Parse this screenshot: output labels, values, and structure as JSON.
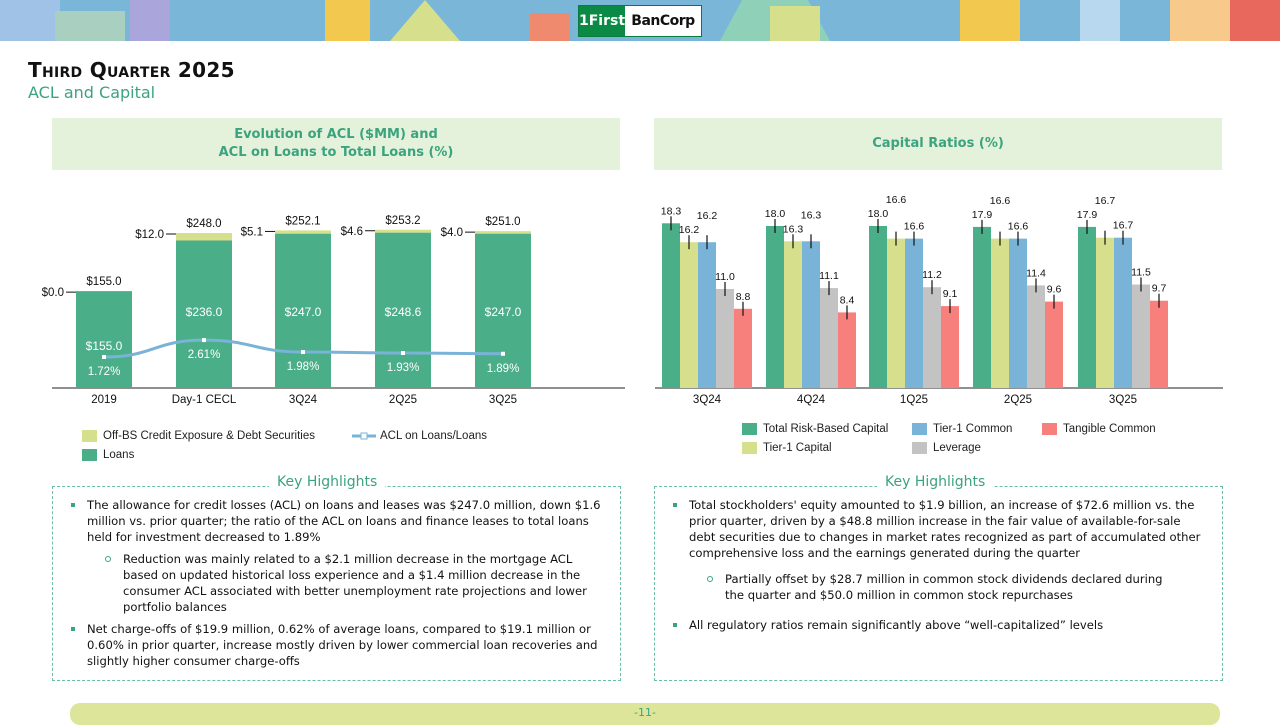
{
  "header": {
    "logo_text": "1First BanCorp",
    "title": "Third Quarter 2025",
    "subtitle": "ACL and Capital"
  },
  "left_panel": {
    "title_line1": "Evolution of ACL ($MM) and",
    "title_line2": "ACL on Loans to Total Loans (%)"
  },
  "right_panel": {
    "title": "Capital Ratios (%)"
  },
  "colors": {
    "green": "#4aae89",
    "lightgreen": "#d5df8c",
    "blue": "#79b4d8",
    "grey": "#c3c3c3",
    "red": "#f7807d",
    "line": "#79b4d8",
    "accent": "#3ba37e"
  },
  "chart_data": [
    {
      "type": "bar",
      "stacked": true,
      "title": "Evolution of ACL ($MM) and ACL on Loans to Total Loans (%)",
      "categories": [
        "2019",
        "Day-1 CECL",
        "3Q24",
        "2Q25",
        "3Q25"
      ],
      "series": [
        {
          "name": "Loans",
          "values": [
            155.0,
            236.0,
            247.0,
            248.6,
            247.0
          ],
          "labels": [
            "$155.0",
            "$236.0",
            "$247.0",
            "$248.6",
            "$247.0"
          ]
        },
        {
          "name": "Off-BS Credit Exposure & Debt Securities",
          "values": [
            0.0,
            12.0,
            5.1,
            4.6,
            4.0
          ],
          "labels": [
            "$0.0",
            "$12.0",
            "$5.1",
            "$4.6",
            "$4.0"
          ]
        }
      ],
      "totals": [
        "$155.0",
        "$248.0",
        "$252.1",
        "$253.2",
        "$251.0"
      ],
      "line": {
        "name": "ACL on Loans/Loans",
        "values": [
          1.72,
          2.61,
          1.98,
          1.93,
          1.89
        ],
        "labels": [
          "1.72%",
          "2.61%",
          "1.98%",
          "1.93%",
          "1.89%"
        ]
      },
      "legend": [
        "Off-BS Credit Exposure & Debt Securities",
        "ACL on Loans/Loans",
        "Loans"
      ]
    },
    {
      "type": "bar",
      "title": "Capital Ratios (%)",
      "categories": [
        "3Q24",
        "4Q24",
        "1Q25",
        "2Q25",
        "3Q25"
      ],
      "series": [
        {
          "name": "Total Risk-Based Capital",
          "values": [
            18.3,
            18.0,
            18.0,
            17.9,
            17.9
          ]
        },
        {
          "name": "Tier-1 Capital",
          "values": [
            16.2,
            16.3,
            16.6,
            16.6,
            16.7
          ]
        },
        {
          "name": "Tier-1 Common",
          "values": [
            16.2,
            16.3,
            16.6,
            16.6,
            16.7
          ]
        },
        {
          "name": "Leverage",
          "values": [
            11.0,
            11.1,
            11.2,
            11.4,
            11.5
          ]
        },
        {
          "name": "Tangible Common",
          "values": [
            8.8,
            8.4,
            9.1,
            9.6,
            9.7
          ]
        }
      ]
    }
  ],
  "highlights_left": {
    "label": "Key Highlights",
    "items": [
      {
        "type": "square",
        "text": "The allowance for credit losses (ACL) on loans and leases was $247.0 million, down $1.6 million vs. prior quarter; the ratio of the ACL on loans and finance leases to total loans held for investment decreased to 1.89%"
      },
      {
        "type": "circle",
        "text": "Reduction was mainly related to a $2.1 million decrease in the mortgage ACL based on updated historical loss experience and a $1.4 million decrease in the consumer ACL associated with better unemployment rate projections and lower portfolio balances"
      },
      {
        "type": "square",
        "text": "Net charge-offs of $19.9 million, 0.62% of average loans, compared to $19.1 million or 0.60% in prior quarter, increase mostly driven by lower commercial loan recoveries and slightly higher consumer charge-offs"
      }
    ]
  },
  "highlights_right": {
    "label": "Key Highlights",
    "items": [
      {
        "type": "square",
        "text": "Total stockholders' equity amounted to $1.9 billion, an increase of $72.6 million vs. the prior quarter, driven by a $48.8 million increase in the fair value of available-for-sale debt securities due to changes in market rates recognized as part of accumulated other comprehensive loss and the earnings generated during the quarter"
      },
      {
        "type": "circle",
        "text": "Partially offset by $28.7 million in common stock dividends declared during the quarter and $50.0 million in common stock repurchases"
      },
      {
        "type": "square",
        "text": "All regulatory ratios remain significantly above “well-capitalized” levels"
      }
    ]
  },
  "footer": {
    "page": "-11-"
  }
}
